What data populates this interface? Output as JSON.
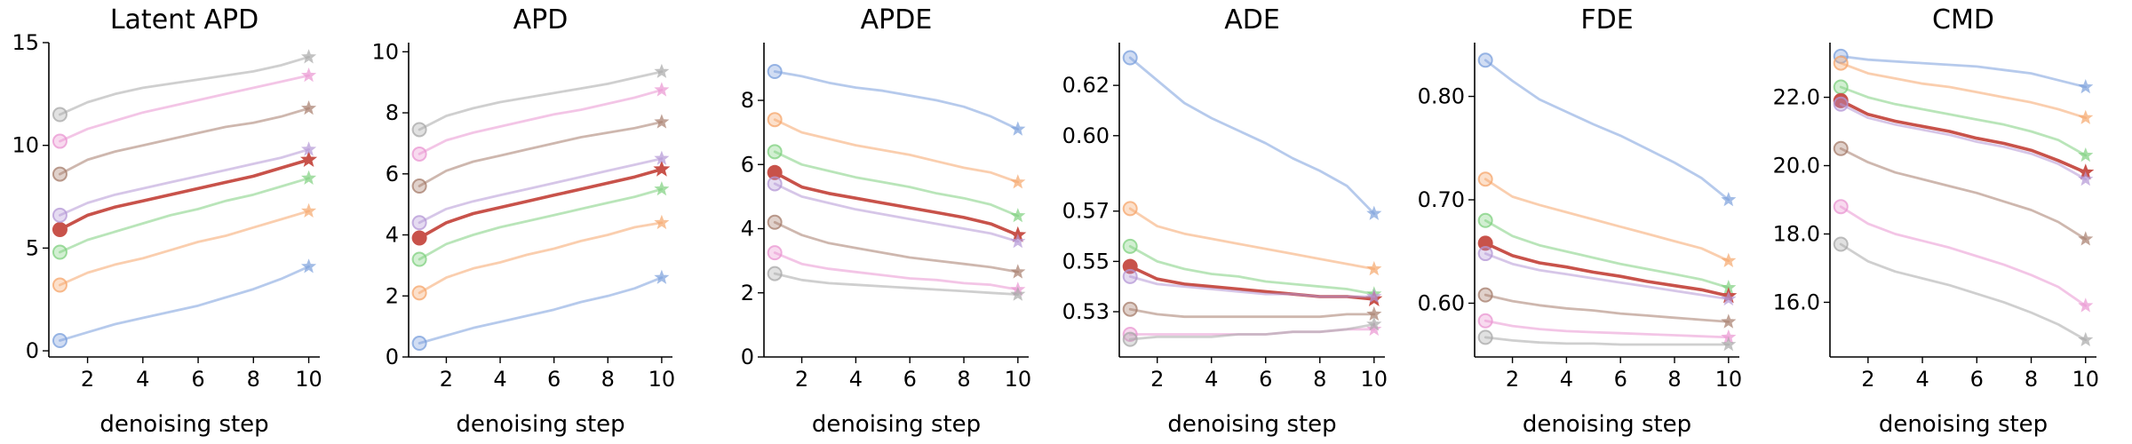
{
  "chart_data": [
    {
      "type": "line",
      "title": "Latent APD",
      "xlabel": "denoising step",
      "ylabel": "",
      "x": [
        1,
        2,
        3,
        4,
        5,
        6,
        7,
        8,
        9,
        10
      ],
      "xticks": [
        2,
        4,
        6,
        8,
        10
      ],
      "xlim": [
        0.6,
        10.4
      ],
      "ylim": [
        -0.3,
        15
      ],
      "yticks": [
        0,
        5,
        10,
        15
      ],
      "ytick_labels": [
        "0",
        "5",
        "10",
        "15"
      ],
      "grid": false,
      "series": [
        {
          "color": "#7a9fdc",
          "values": [
            0.5,
            0.9,
            1.3,
            1.6,
            1.9,
            2.2,
            2.6,
            3.0,
            3.5,
            4.1
          ]
        },
        {
          "color": "#f5a66b",
          "values": [
            3.2,
            3.8,
            4.2,
            4.5,
            4.9,
            5.3,
            5.6,
            6.0,
            6.4,
            6.8
          ]
        },
        {
          "color": "#7fd07f",
          "values": [
            4.8,
            5.4,
            5.8,
            6.2,
            6.6,
            6.9,
            7.3,
            7.6,
            8.0,
            8.4
          ]
        },
        {
          "color": "#c8524a",
          "highlight": true,
          "values": [
            5.9,
            6.6,
            7.0,
            7.3,
            7.6,
            7.9,
            8.2,
            8.5,
            8.9,
            9.3
          ]
        },
        {
          "color": "#b497d6",
          "values": [
            6.6,
            7.2,
            7.6,
            7.9,
            8.2,
            8.5,
            8.8,
            9.1,
            9.4,
            9.8
          ]
        },
        {
          "color": "#a67c6b",
          "values": [
            8.6,
            9.3,
            9.7,
            10.0,
            10.3,
            10.6,
            10.9,
            11.1,
            11.4,
            11.8
          ]
        },
        {
          "color": "#ea96d2",
          "values": [
            10.2,
            10.8,
            11.2,
            11.6,
            11.9,
            12.2,
            12.5,
            12.8,
            13.1,
            13.4
          ]
        },
        {
          "color": "#a8a8a8",
          "values": [
            11.5,
            12.1,
            12.5,
            12.8,
            13.0,
            13.2,
            13.4,
            13.6,
            13.9,
            14.3
          ]
        }
      ]
    },
    {
      "type": "line",
      "title": "APD",
      "xlabel": "denoising step",
      "ylabel": "",
      "x": [
        1,
        2,
        3,
        4,
        5,
        6,
        7,
        8,
        9,
        10
      ],
      "xticks": [
        2,
        4,
        6,
        8,
        10
      ],
      "xlim": [
        0.6,
        10.4
      ],
      "ylim": [
        0,
        10.3
      ],
      "yticks": [
        0,
        2,
        4,
        6,
        8,
        10
      ],
      "ytick_labels": [
        "0",
        "2",
        "4",
        "6",
        "8",
        "10"
      ],
      "grid": false,
      "series": [
        {
          "color": "#7a9fdc",
          "values": [
            0.45,
            0.7,
            0.95,
            1.15,
            1.35,
            1.55,
            1.8,
            2.0,
            2.25,
            2.6
          ]
        },
        {
          "color": "#f5a66b",
          "values": [
            2.1,
            2.6,
            2.9,
            3.1,
            3.35,
            3.55,
            3.8,
            4.0,
            4.25,
            4.4
          ]
        },
        {
          "color": "#7fd07f",
          "values": [
            3.2,
            3.7,
            4.0,
            4.25,
            4.45,
            4.65,
            4.85,
            5.05,
            5.25,
            5.5
          ]
        },
        {
          "color": "#c8524a",
          "highlight": true,
          "values": [
            3.9,
            4.4,
            4.7,
            4.9,
            5.1,
            5.3,
            5.5,
            5.7,
            5.9,
            6.15
          ]
        },
        {
          "color": "#b497d6",
          "values": [
            4.4,
            4.85,
            5.1,
            5.3,
            5.5,
            5.7,
            5.9,
            6.1,
            6.3,
            6.5
          ]
        },
        {
          "color": "#a67c6b",
          "values": [
            5.6,
            6.1,
            6.4,
            6.6,
            6.8,
            7.0,
            7.2,
            7.35,
            7.5,
            7.7
          ]
        },
        {
          "color": "#ea96d2",
          "values": [
            6.65,
            7.1,
            7.35,
            7.55,
            7.75,
            7.95,
            8.1,
            8.3,
            8.5,
            8.75
          ]
        },
        {
          "color": "#a8a8a8",
          "values": [
            7.45,
            7.9,
            8.15,
            8.35,
            8.5,
            8.65,
            8.8,
            8.95,
            9.15,
            9.35
          ]
        }
      ]
    },
    {
      "type": "line",
      "title": "APDE",
      "xlabel": "denoising step",
      "ylabel": "",
      "x": [
        1,
        2,
        3,
        4,
        5,
        6,
        7,
        8,
        9,
        10
      ],
      "xticks": [
        2,
        4,
        6,
        8,
        10
      ],
      "xlim": [
        0.6,
        10.4
      ],
      "ylim": [
        0,
        9.8
      ],
      "yticks": [
        0,
        2,
        4,
        6,
        8
      ],
      "ytick_labels": [
        "0",
        "2",
        "4",
        "6",
        "8"
      ],
      "grid": false,
      "series": [
        {
          "color": "#7a9fdc",
          "values": [
            8.9,
            8.75,
            8.55,
            8.4,
            8.3,
            8.15,
            8.0,
            7.8,
            7.5,
            7.1
          ]
        },
        {
          "color": "#f5a66b",
          "values": [
            7.4,
            7.0,
            6.8,
            6.6,
            6.45,
            6.3,
            6.1,
            5.9,
            5.75,
            5.45
          ]
        },
        {
          "color": "#7fd07f",
          "values": [
            6.4,
            6.0,
            5.8,
            5.6,
            5.45,
            5.3,
            5.1,
            4.95,
            4.75,
            4.4
          ]
        },
        {
          "color": "#c8524a",
          "highlight": true,
          "values": [
            5.75,
            5.3,
            5.1,
            4.95,
            4.8,
            4.65,
            4.5,
            4.35,
            4.15,
            3.8
          ]
        },
        {
          "color": "#b497d6",
          "values": [
            5.4,
            5.0,
            4.8,
            4.6,
            4.45,
            4.3,
            4.15,
            4.0,
            3.85,
            3.6
          ]
        },
        {
          "color": "#a67c6b",
          "values": [
            4.2,
            3.8,
            3.55,
            3.4,
            3.25,
            3.1,
            3.0,
            2.9,
            2.8,
            2.65
          ]
        },
        {
          "color": "#ea96d2",
          "values": [
            3.25,
            2.9,
            2.75,
            2.65,
            2.55,
            2.45,
            2.4,
            2.3,
            2.25,
            2.1
          ]
        },
        {
          "color": "#a8a8a8",
          "values": [
            2.6,
            2.4,
            2.3,
            2.25,
            2.2,
            2.15,
            2.1,
            2.05,
            2.0,
            1.95
          ]
        }
      ]
    },
    {
      "type": "line",
      "title": "ADE",
      "xlabel": "denoising step",
      "ylabel": "",
      "x": [
        1,
        2,
        3,
        4,
        5,
        6,
        7,
        8,
        9,
        10
      ],
      "xticks": [
        2,
        4,
        6,
        8,
        10
      ],
      "xlim": [
        0.6,
        10.4
      ],
      "ylim": [
        0.512,
        0.637
      ],
      "yticks": [
        0.53,
        0.55,
        0.57,
        0.6,
        0.62
      ],
      "ytick_labels": [
        "0.53",
        "0.55",
        "0.57",
        "0.60",
        "0.62"
      ],
      "grid": false,
      "series": [
        {
          "color": "#7a9fdc",
          "values": [
            0.631,
            0.622,
            0.613,
            0.607,
            0.602,
            0.597,
            0.591,
            0.586,
            0.58,
            0.569
          ]
        },
        {
          "color": "#f5a66b",
          "values": [
            0.571,
            0.564,
            0.561,
            0.559,
            0.557,
            0.555,
            0.553,
            0.551,
            0.549,
            0.547
          ]
        },
        {
          "color": "#7fd07f",
          "values": [
            0.556,
            0.55,
            0.547,
            0.545,
            0.544,
            0.542,
            0.541,
            0.54,
            0.539,
            0.537
          ]
        },
        {
          "color": "#c8524a",
          "highlight": true,
          "values": [
            0.548,
            0.543,
            0.541,
            0.54,
            0.539,
            0.538,
            0.537,
            0.536,
            0.536,
            0.535
          ]
        },
        {
          "color": "#b497d6",
          "values": [
            0.544,
            0.541,
            0.54,
            0.539,
            0.538,
            0.537,
            0.537,
            0.536,
            0.536,
            0.536
          ]
        },
        {
          "color": "#a67c6b",
          "values": [
            0.531,
            0.529,
            0.528,
            0.528,
            0.528,
            0.528,
            0.528,
            0.528,
            0.529,
            0.529
          ]
        },
        {
          "color": "#ea96d2",
          "values": [
            0.521,
            0.521,
            0.521,
            0.521,
            0.521,
            0.521,
            0.522,
            0.522,
            0.523,
            0.523
          ]
        },
        {
          "color": "#a8a8a8",
          "values": [
            0.519,
            0.52,
            0.52,
            0.52,
            0.521,
            0.521,
            0.522,
            0.522,
            0.523,
            0.525
          ]
        }
      ]
    },
    {
      "type": "line",
      "title": "FDE",
      "xlabel": "denoising step",
      "ylabel": "",
      "x": [
        1,
        2,
        3,
        4,
        5,
        6,
        7,
        8,
        9,
        10
      ],
      "xticks": [
        2,
        4,
        6,
        8,
        10
      ],
      "xlim": [
        0.6,
        10.4
      ],
      "ylim": [
        0.548,
        0.852
      ],
      "yticks": [
        0.6,
        0.7,
        0.8
      ],
      "ytick_labels": [
        "0.60",
        "0.70",
        "0.80"
      ],
      "grid": false,
      "series": [
        {
          "color": "#7a9fdc",
          "values": [
            0.835,
            0.815,
            0.797,
            0.785,
            0.773,
            0.762,
            0.749,
            0.736,
            0.721,
            0.7
          ]
        },
        {
          "color": "#f5a66b",
          "values": [
            0.72,
            0.703,
            0.695,
            0.688,
            0.681,
            0.674,
            0.667,
            0.66,
            0.653,
            0.641
          ]
        },
        {
          "color": "#7fd07f",
          "values": [
            0.68,
            0.665,
            0.656,
            0.65,
            0.644,
            0.638,
            0.633,
            0.628,
            0.623,
            0.615
          ]
        },
        {
          "color": "#c8524a",
          "highlight": true,
          "values": [
            0.658,
            0.646,
            0.639,
            0.635,
            0.63,
            0.626,
            0.621,
            0.617,
            0.613,
            0.607
          ]
        },
        {
          "color": "#b497d6",
          "values": [
            0.648,
            0.638,
            0.632,
            0.628,
            0.624,
            0.62,
            0.616,
            0.612,
            0.608,
            0.604
          ]
        },
        {
          "color": "#a67c6b",
          "values": [
            0.608,
            0.602,
            0.598,
            0.595,
            0.593,
            0.59,
            0.588,
            0.586,
            0.584,
            0.582
          ]
        },
        {
          "color": "#ea96d2",
          "values": [
            0.583,
            0.578,
            0.575,
            0.573,
            0.572,
            0.571,
            0.57,
            0.569,
            0.568,
            0.567
          ]
        },
        {
          "color": "#a8a8a8",
          "values": [
            0.567,
            0.564,
            0.562,
            0.561,
            0.561,
            0.56,
            0.56,
            0.56,
            0.56,
            0.56
          ]
        }
      ]
    },
    {
      "type": "line",
      "title": "CMD",
      "xlabel": "denoising step",
      "ylabel": "",
      "x": [
        1,
        2,
        3,
        4,
        5,
        6,
        7,
        8,
        9,
        10
      ],
      "xticks": [
        2,
        4,
        6,
        8,
        10
      ],
      "xlim": [
        0.6,
        10.4
      ],
      "ylim": [
        14.4,
        23.6
      ],
      "yticks": [
        16.0,
        18.0,
        20.0,
        22.0
      ],
      "ytick_labels": [
        "16.0",
        "18.0",
        "20.0",
        "22.0"
      ],
      "grid": false,
      "series": [
        {
          "color": "#7a9fdc",
          "values": [
            23.2,
            23.1,
            23.05,
            23.0,
            22.95,
            22.9,
            22.8,
            22.7,
            22.5,
            22.3
          ]
        },
        {
          "color": "#f5a66b",
          "values": [
            23.0,
            22.7,
            22.55,
            22.4,
            22.3,
            22.15,
            22.0,
            21.85,
            21.65,
            21.4
          ]
        },
        {
          "color": "#7fd07f",
          "values": [
            22.3,
            22.0,
            21.8,
            21.65,
            21.5,
            21.35,
            21.2,
            21.0,
            20.75,
            20.3
          ]
        },
        {
          "color": "#c8524a",
          "highlight": true,
          "values": [
            21.9,
            21.5,
            21.3,
            21.15,
            21.0,
            20.8,
            20.65,
            20.45,
            20.15,
            19.8
          ]
        },
        {
          "color": "#b497d6",
          "values": [
            21.8,
            21.4,
            21.2,
            21.05,
            20.9,
            20.7,
            20.55,
            20.35,
            20.05,
            19.6
          ]
        },
        {
          "color": "#a67c6b",
          "values": [
            20.5,
            20.1,
            19.8,
            19.6,
            19.4,
            19.2,
            18.95,
            18.7,
            18.35,
            17.85
          ]
        },
        {
          "color": "#ea96d2",
          "values": [
            18.8,
            18.3,
            18.0,
            17.8,
            17.6,
            17.35,
            17.1,
            16.8,
            16.45,
            15.9
          ]
        },
        {
          "color": "#a8a8a8",
          "values": [
            17.7,
            17.2,
            16.9,
            16.7,
            16.5,
            16.25,
            16.0,
            15.7,
            15.35,
            14.9
          ]
        }
      ]
    }
  ]
}
